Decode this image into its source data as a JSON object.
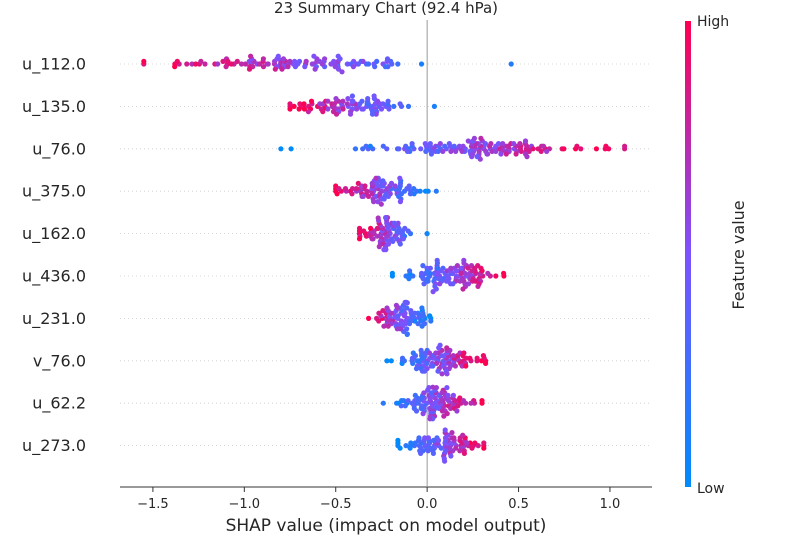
{
  "chart_data": {
    "type": "scatter",
    "subtype": "shap-beeswarm-summary",
    "title": "23 Summary Chart (92.4 hPa)",
    "xlabel": "SHAP value (impact on model output)",
    "xlim": [
      -1.68,
      1.23
    ],
    "xticks": [
      -1.5,
      -1.0,
      -0.5,
      0.0,
      0.5,
      1.0
    ],
    "xtick_labels": [
      "−1.5",
      "−1.0",
      "−0.5",
      "0.0",
      "0.5",
      "1.0"
    ],
    "grid": "horizontal-dotted",
    "colorbar": {
      "label": "Feature value",
      "high_label": "High",
      "low_label": "Low",
      "low_color": "#008bfb",
      "mid_color": "#7c52ff",
      "high_color": "#ff0051"
    },
    "features": [
      {
        "name": "u_112.0",
        "min": -1.55,
        "max": 0.46,
        "center": -0.7,
        "spread": 0.33,
        "color_trend": "negative",
        "n": 110
      },
      {
        "name": "u_135.0",
        "min": -0.75,
        "max": 0.04,
        "center": -0.45,
        "spread": 0.16,
        "color_trend": "negative",
        "n": 90
      },
      {
        "name": "u_76.0",
        "min": -0.8,
        "max": 1.08,
        "center": 0.3,
        "spread": 0.3,
        "color_trend": "positive",
        "n": 140
      },
      {
        "name": "u_375.0",
        "min": -0.5,
        "max": 0.05,
        "center": -0.25,
        "spread": 0.11,
        "color_trend": "negative",
        "n": 90
      },
      {
        "name": "u_162.0",
        "min": -0.37,
        "max": 0.0,
        "center": -0.22,
        "spread": 0.08,
        "color_trend": "negative",
        "n": 80
      },
      {
        "name": "u_436.0",
        "min": -0.19,
        "max": 0.42,
        "center": 0.1,
        "spread": 0.13,
        "color_trend": "positive",
        "n": 110
      },
      {
        "name": "u_231.0",
        "min": -0.32,
        "max": 0.02,
        "center": -0.12,
        "spread": 0.07,
        "color_trend": "negative",
        "n": 80
      },
      {
        "name": "v_76.0",
        "min": -0.22,
        "max": 0.32,
        "center": 0.05,
        "spread": 0.11,
        "color_trend": "positive",
        "n": 100
      },
      {
        "name": "u_62.2",
        "min": -0.24,
        "max": 0.3,
        "center": 0.05,
        "spread": 0.12,
        "color_trend": "positive",
        "n": 100
      },
      {
        "name": "u_273.0",
        "min": -0.16,
        "max": 0.31,
        "center": 0.1,
        "spread": 0.1,
        "color_trend": "positive",
        "n": 90
      }
    ]
  }
}
